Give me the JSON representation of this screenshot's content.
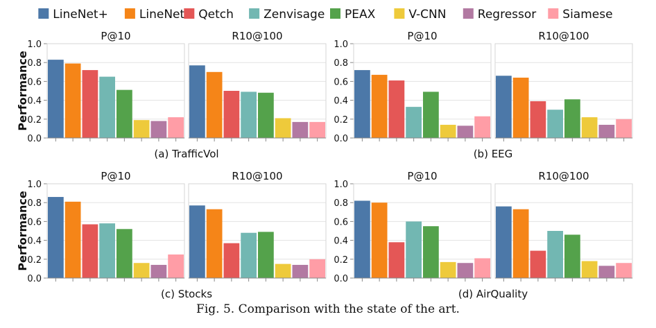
{
  "figure_caption": "Fig. 5.  Comparison with the state of the art.",
  "legend": {
    "items": [
      {
        "label": "LineNet+",
        "color": "#4c78a8"
      },
      {
        "label": "LineNet",
        "color": "#f58518"
      },
      {
        "label": "Qetch",
        "color": "#e45756"
      },
      {
        "label": "Zenvisage",
        "color": "#72b7b2"
      },
      {
        "label": "PEAX",
        "color": "#54a24b"
      },
      {
        "label": "V-CNN",
        "color": "#eeca3b"
      },
      {
        "label": "Regressor",
        "color": "#b279a2"
      },
      {
        "label": "Siamese",
        "color": "#ff9da6"
      }
    ]
  },
  "chart_data": [
    {
      "type": "bar",
      "subcaption": "(a) TrafficVol",
      "ylabel": "Performance",
      "ylim": [
        0,
        1
      ],
      "yticks": [
        "0.0",
        "0.2",
        "0.4",
        "0.6",
        "0.8",
        "1.0"
      ],
      "categories": [
        "LineNet+",
        "LineNet",
        "Qetch",
        "Zenvisage",
        "PEAX",
        "V-CNN",
        "Regressor",
        "Siamese"
      ],
      "panels": [
        {
          "title": "P@10",
          "values": [
            0.83,
            0.79,
            0.72,
            0.65,
            0.51,
            0.19,
            0.18,
            0.22
          ]
        },
        {
          "title": "R10@100",
          "values": [
            0.77,
            0.7,
            0.5,
            0.49,
            0.48,
            0.21,
            0.17,
            0.17
          ]
        }
      ]
    },
    {
      "type": "bar",
      "subcaption": "(b) EEG",
      "ylabel": "",
      "ylim": [
        0,
        1
      ],
      "yticks": [
        "0.0",
        "0.2",
        "0.4",
        "0.6",
        "0.8",
        "1.0"
      ],
      "categories": [
        "LineNet+",
        "LineNet",
        "Qetch",
        "Zenvisage",
        "PEAX",
        "V-CNN",
        "Regressor",
        "Siamese"
      ],
      "panels": [
        {
          "title": "P@10",
          "values": [
            0.72,
            0.67,
            0.61,
            0.33,
            0.49,
            0.14,
            0.13,
            0.23
          ]
        },
        {
          "title": "R10@100",
          "values": [
            0.66,
            0.64,
            0.39,
            0.3,
            0.41,
            0.22,
            0.14,
            0.2
          ]
        }
      ]
    },
    {
      "type": "bar",
      "subcaption": "(c) Stocks",
      "ylabel": "Performance",
      "ylim": [
        0,
        1
      ],
      "yticks": [
        "0.0",
        "0.2",
        "0.4",
        "0.6",
        "0.8",
        "1.0"
      ],
      "categories": [
        "LineNet+",
        "LineNet",
        "Qetch",
        "Zenvisage",
        "PEAX",
        "V-CNN",
        "Regressor",
        "Siamese"
      ],
      "panels": [
        {
          "title": "P@10",
          "values": [
            0.86,
            0.81,
            0.57,
            0.58,
            0.52,
            0.16,
            0.14,
            0.25
          ]
        },
        {
          "title": "R10@100",
          "values": [
            0.77,
            0.73,
            0.37,
            0.48,
            0.49,
            0.15,
            0.14,
            0.2
          ]
        }
      ]
    },
    {
      "type": "bar",
      "subcaption": "(d) AirQuality",
      "ylabel": "",
      "ylim": [
        0,
        1
      ],
      "yticks": [
        "0.0",
        "0.2",
        "0.4",
        "0.6",
        "0.8",
        "1.0"
      ],
      "categories": [
        "LineNet+",
        "LineNet",
        "Qetch",
        "Zenvisage",
        "PEAX",
        "V-CNN",
        "Regressor",
        "Siamese"
      ],
      "panels": [
        {
          "title": "P@10",
          "values": [
            0.82,
            0.8,
            0.38,
            0.6,
            0.55,
            0.17,
            0.16,
            0.21
          ]
        },
        {
          "title": "R10@100",
          "values": [
            0.76,
            0.73,
            0.29,
            0.5,
            0.46,
            0.18,
            0.13,
            0.16
          ]
        }
      ]
    }
  ]
}
